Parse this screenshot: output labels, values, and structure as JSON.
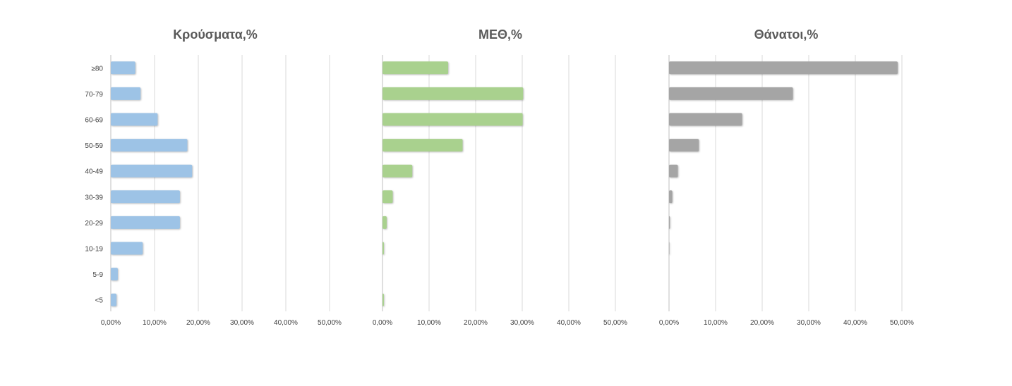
{
  "chart_data": [
    {
      "type": "bar",
      "orientation": "horizontal",
      "title": "Κρούσματα,%",
      "categories": [
        "≥80",
        "70-79",
        "60-69",
        "50-59",
        "40-49",
        "30-39",
        "20-29",
        "10-19",
        "5-9",
        "<5"
      ],
      "values": [
        5.6,
        6.8,
        10.7,
        17.5,
        18.6,
        15.8,
        15.8,
        7.3,
        1.6,
        1.3
      ],
      "xlim": [
        0,
        50
      ],
      "ticks": [
        "0,00%",
        "10,00%",
        "20,00%",
        "30,00%",
        "40,00%",
        "50,00%"
      ],
      "grid": true,
      "color": "#9dc3e6"
    },
    {
      "type": "bar",
      "orientation": "horizontal",
      "title": "ΜΕΘ,%",
      "categories": [
        "≥80",
        "70-79",
        "60-69",
        "50-59",
        "40-49",
        "30-39",
        "20-29",
        "10-19",
        "5-9",
        "<5"
      ],
      "values": [
        14.1,
        30.2,
        30.1,
        17.2,
        6.4,
        2.2,
        0.9,
        0.3,
        0.0,
        0.3
      ],
      "xlim": [
        0,
        50
      ],
      "ticks": [
        "0,00%",
        "10,00%",
        "20,00%",
        "30,00%",
        "40,00%",
        "50,00%"
      ],
      "grid": true,
      "color": "#a9d18e"
    },
    {
      "type": "bar",
      "orientation": "horizontal",
      "title": "Θάνατοι,%",
      "categories": [
        "≥80",
        "70-79",
        "60-69",
        "50-59",
        "40-49",
        "30-39",
        "20-29",
        "10-19",
        "5-9",
        "<5"
      ],
      "values": [
        49.1,
        26.6,
        15.7,
        6.4,
        1.9,
        0.7,
        0.2,
        0.1,
        0.0,
        0.0
      ],
      "xlim": [
        0,
        50
      ],
      "ticks": [
        "0,00%",
        "10,00%",
        "20,00%",
        "30,00%",
        "40,00%",
        "50,00%"
      ],
      "grid": true,
      "color": "#a5a5a5"
    }
  ]
}
